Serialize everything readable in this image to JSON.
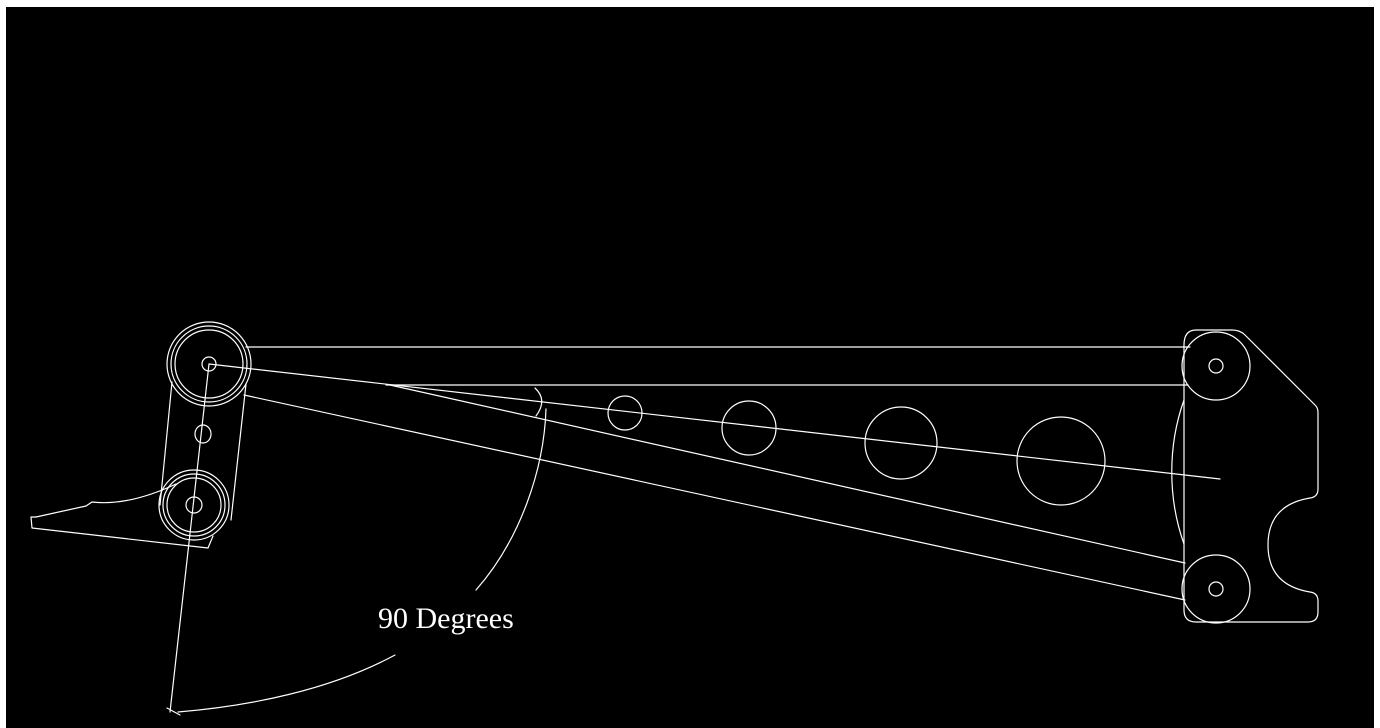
{
  "drawing": {
    "background_color": "#000000",
    "line_color": "#ffffff",
    "frame_color": "#ffffff",
    "annotation": {
      "angle_label": "90 Degrees"
    }
  }
}
